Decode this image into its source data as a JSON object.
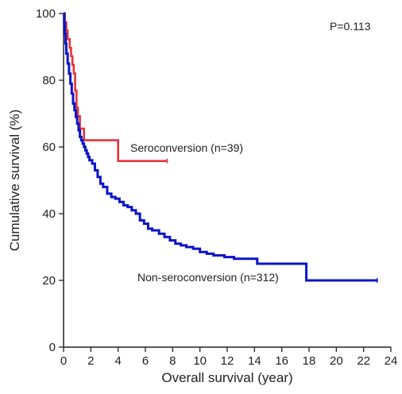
{
  "chart_data": {
    "type": "line",
    "step": true,
    "title": "",
    "xlabel": "Overall survival (year)",
    "ylabel": "Cumulative survival (%)",
    "xlim": [
      0,
      24
    ],
    "ylim": [
      0,
      100
    ],
    "xticks": [
      "0",
      "2",
      "4",
      "6",
      "8",
      "10",
      "12",
      "14",
      "16",
      "18",
      "20",
      "22",
      "24"
    ],
    "yticks": [
      "0",
      "20",
      "40",
      "60",
      "80",
      "100"
    ],
    "grid": false,
    "annotation": "P=0.113",
    "series": [
      {
        "name": "Seroconversion (n=39)",
        "color": "#e8333a",
        "points": [
          [
            0,
            100
          ],
          [
            0.1,
            97.4
          ],
          [
            0.2,
            94.9
          ],
          [
            0.3,
            92.3
          ],
          [
            0.45,
            89.7
          ],
          [
            0.55,
            87.2
          ],
          [
            0.65,
            84.6
          ],
          [
            0.75,
            82.0
          ],
          [
            0.85,
            76.9
          ],
          [
            0.95,
            71.8
          ],
          [
            1.05,
            69.2
          ],
          [
            1.2,
            65.5
          ],
          [
            1.5,
            62.0
          ],
          [
            4.0,
            55.8
          ],
          [
            7.6,
            55.8
          ]
        ]
      },
      {
        "name": "Non-seroconversion (n=312)",
        "color": "#0a14c8",
        "points": [
          [
            0,
            100
          ],
          [
            0.05,
            97
          ],
          [
            0.1,
            94
          ],
          [
            0.15,
            91
          ],
          [
            0.2,
            88
          ],
          [
            0.3,
            85
          ],
          [
            0.4,
            82
          ],
          [
            0.5,
            79
          ],
          [
            0.6,
            76
          ],
          [
            0.7,
            73
          ],
          [
            0.8,
            71
          ],
          [
            0.9,
            69
          ],
          [
            1.0,
            67
          ],
          [
            1.1,
            65
          ],
          [
            1.2,
            63
          ],
          [
            1.3,
            62
          ],
          [
            1.4,
            61
          ],
          [
            1.5,
            60
          ],
          [
            1.6,
            59
          ],
          [
            1.7,
            58
          ],
          [
            1.8,
            57
          ],
          [
            1.9,
            56
          ],
          [
            2.1,
            55
          ],
          [
            2.3,
            53
          ],
          [
            2.5,
            51
          ],
          [
            2.7,
            49
          ],
          [
            2.9,
            48
          ],
          [
            3.2,
            46
          ],
          [
            3.5,
            45
          ],
          [
            3.8,
            44.5
          ],
          [
            4.1,
            43.5
          ],
          [
            4.4,
            42.5
          ],
          [
            4.7,
            42
          ],
          [
            5.0,
            41
          ],
          [
            5.3,
            40
          ],
          [
            5.6,
            38
          ],
          [
            5.9,
            37
          ],
          [
            6.2,
            35.5
          ],
          [
            6.5,
            35
          ],
          [
            7.0,
            34
          ],
          [
            7.4,
            33
          ],
          [
            7.8,
            32
          ],
          [
            8.2,
            31
          ],
          [
            8.6,
            30.5
          ],
          [
            9.0,
            30
          ],
          [
            9.5,
            29.5
          ],
          [
            10.0,
            28.5
          ],
          [
            10.5,
            28
          ],
          [
            11.0,
            27.5
          ],
          [
            11.8,
            27
          ],
          [
            12.5,
            26.5
          ],
          [
            14.2,
            25
          ],
          [
            15.5,
            25
          ],
          [
            17.8,
            20
          ],
          [
            23,
            20
          ]
        ]
      }
    ]
  }
}
